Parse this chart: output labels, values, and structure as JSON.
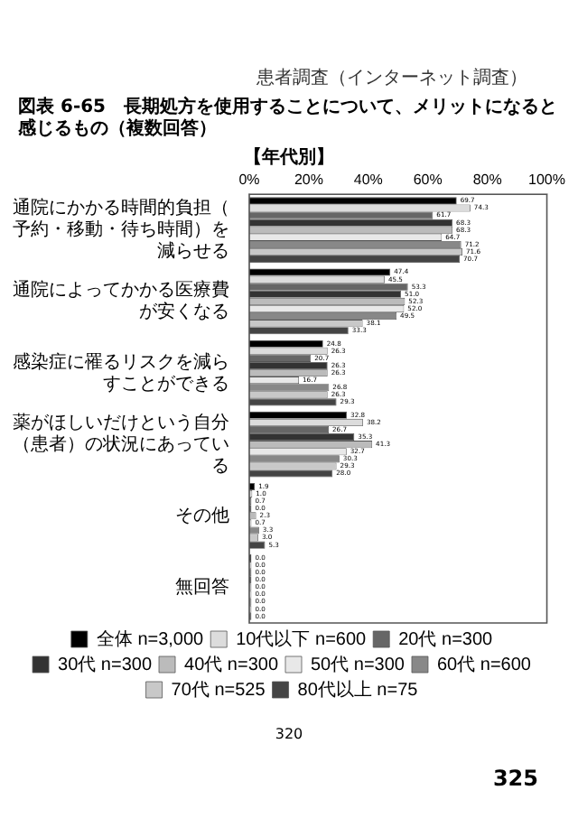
{
  "chart_data": {
    "type": "bar",
    "orientation": "horizontal",
    "title": "図表 6-65　長期処方を使用することについて、メリットになると感じるもの（複数回答）",
    "subtitle": "【年代別】",
    "annotations": [
      "患者調査（インターネット調査）",
      "320",
      "325"
    ],
    "categories": [
      "通院にかかる時間的負担（予約・移動・待ち時間）を減らせる",
      "通院によってかかる医療費が安くなる",
      "感染症に罹るリスクを減らすことができる",
      "薬がほしいだけという自分（患者）の状況にあっている",
      "その他",
      "無回答"
    ],
    "series": [
      {
        "name": "全体 n=3,000",
        "color": "#000000",
        "values": [
          69.7,
          47.4,
          24.8,
          32.8,
          1.9,
          0
        ],
        "value_labels": [
          "69.7",
          "47.4",
          "24.8",
          "32.8",
          "1.9",
          "0.0"
        ]
      },
      {
        "name": "10代以下 n=600",
        "color": "#dcdcdc",
        "values": [
          74.3,
          45.5,
          26.3,
          38.2,
          1,
          0
        ],
        "value_labels": [
          "74.3",
          "45.5",
          "26.3",
          "38.2",
          "1.0",
          "0.0"
        ]
      },
      {
        "name": "20代 n=300",
        "color": "#666666",
        "values": [
          61.7,
          53.3,
          20.7,
          26.7,
          0.7,
          0
        ],
        "value_labels": [
          "61.7",
          "53.3",
          "20.7",
          "26.7",
          "0.7",
          "0.0"
        ]
      },
      {
        "name": "30代 n=300",
        "color": "#333333",
        "values": [
          68.3,
          51,
          26.3,
          35.3,
          0,
          0
        ],
        "value_labels": [
          "68.3",
          "51.0",
          "26.3",
          "35.3",
          "0.0",
          "0.0"
        ]
      },
      {
        "name": "40代 n=300",
        "color": "#bbbbbb",
        "values": [
          68.3,
          52.3,
          26.3,
          41.3,
          2.3,
          0
        ],
        "value_labels": [
          "68.3",
          "52.3",
          "26.3",
          "41.3",
          "2.3",
          "0.0"
        ]
      },
      {
        "name": "50代 n=300",
        "color": "#e8e8e8",
        "values": [
          64.7,
          52,
          16.7,
          32.7,
          0.7,
          0
        ],
        "value_labels": [
          "64.7",
          "52.0",
          "16.7",
          "32.7",
          "0.7",
          "0.0"
        ]
      },
      {
        "name": "60代 n=600",
        "color": "#888888",
        "values": [
          71.2,
          49.5,
          26.8,
          30.3,
          3.3,
          0
        ],
        "value_labels": [
          "71.2",
          "49.5",
          "26.8",
          "30.3",
          "3.3",
          "0.0"
        ]
      },
      {
        "name": "70代 n=525",
        "color": "#c8c8c8",
        "values": [
          71.6,
          38.1,
          26.3,
          29.3,
          3,
          0
        ],
        "value_labels": [
          "71.6",
          "38.1",
          "26.3",
          "29.3",
          "3.0",
          "0.0"
        ]
      },
      {
        "name": "80代以上 n=75",
        "color": "#444444",
        "values": [
          70.7,
          33.3,
          29.3,
          28,
          5.3,
          0
        ],
        "value_labels": [
          "70.7",
          "33.3",
          "29.3",
          "28.0",
          "5.3",
          "0.0"
        ]
      }
    ],
    "xlim": [
      0,
      100
    ],
    "xticks": [
      {
        "value": 0,
        "label": "0%"
      },
      {
        "value": 20,
        "label": "20%"
      },
      {
        "value": 40,
        "label": "40%"
      },
      {
        "value": 60,
        "label": "60%"
      },
      {
        "value": 80,
        "label": "80%"
      },
      {
        "value": 100,
        "label": "100%"
      }
    ],
    "grid": false,
    "legend": "bottom"
  }
}
